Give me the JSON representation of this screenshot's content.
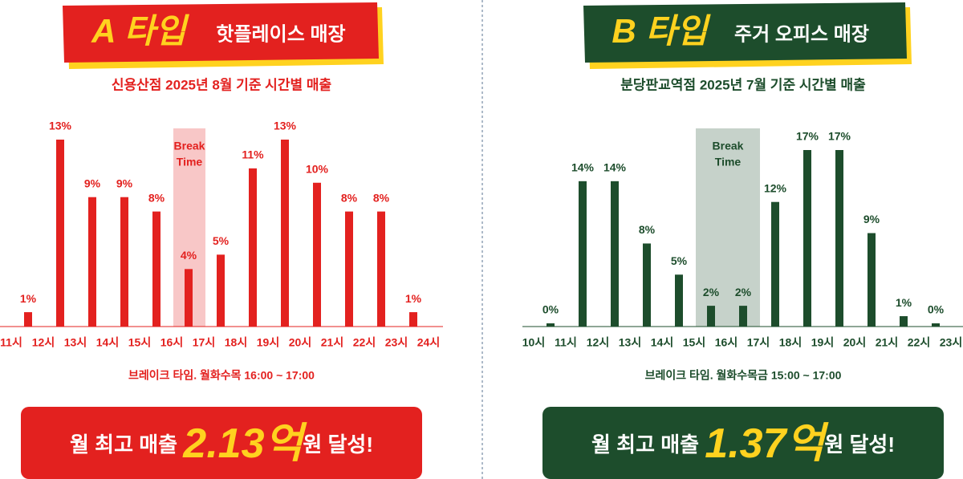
{
  "chart_data": [
    {
      "type": "histogram",
      "badge": "A 타입",
      "title": "핫플레이스 매장",
      "subtitle": "신용산점 2025년 8월 기준 시간별 매출",
      "bins": [
        11,
        12,
        13,
        14,
        15,
        16,
        17,
        18,
        19,
        20,
        21,
        22,
        23,
        24
      ],
      "values": [
        1,
        13,
        9,
        9,
        8,
        4,
        5,
        11,
        13,
        10,
        8,
        8,
        1
      ],
      "value_labels": [
        "1%",
        "13%",
        "9%",
        "9%",
        "8%",
        "4%",
        "5%",
        "11%",
        "13%",
        "10%",
        "8%",
        "8%",
        "1%"
      ],
      "xticks": [
        {
          "value": 11,
          "label": "11시"
        },
        {
          "value": 12,
          "label": "12시"
        },
        {
          "value": 13,
          "label": "13시"
        },
        {
          "value": 14,
          "label": "14시"
        },
        {
          "value": 15,
          "label": "15시"
        },
        {
          "value": 16,
          "label": "16시"
        },
        {
          "value": 17,
          "label": "17시"
        },
        {
          "value": 18,
          "label": "18시"
        },
        {
          "value": 19,
          "label": "19시"
        },
        {
          "value": 20,
          "label": "20시"
        },
        {
          "value": 21,
          "label": "21시"
        },
        {
          "value": 22,
          "label": "22시"
        },
        {
          "value": 23,
          "label": "23시"
        },
        {
          "value": 24,
          "label": "24시"
        }
      ],
      "ylim": [
        0,
        13
      ],
      "color": "#e3211f",
      "break_time": {
        "range": [
          16,
          17
        ],
        "label": [
          "Break",
          "Time"
        ]
      },
      "note": "브레이크 타임.  월화수목 16:00 ~ 17:00",
      "summary": [
        "월 최고 매출 ",
        "2.13억",
        "원 달성!"
      ]
    },
    {
      "type": "histogram",
      "badge": "B 타입",
      "title": "주거 오피스 매장",
      "subtitle": "분당판교역점 2025년 7월 기준 시간별 매출",
      "bins": [
        10,
        11,
        12,
        13,
        14,
        15,
        16,
        17,
        18,
        19,
        20,
        21,
        22,
        23
      ],
      "values": [
        0,
        14,
        14,
        8,
        5,
        2,
        2,
        12,
        17,
        17,
        9,
        1,
        0
      ],
      "value_labels": [
        "0%",
        "14%",
        "14%",
        "8%",
        "5%",
        "2%",
        "2%",
        "12%",
        "17%",
        "17%",
        "9%",
        "1%",
        "0%"
      ],
      "xticks": [
        {
          "value": 10,
          "label": "10시"
        },
        {
          "value": 11,
          "label": "11시"
        },
        {
          "value": 12,
          "label": "12시"
        },
        {
          "value": 13,
          "label": "13시"
        },
        {
          "value": 14,
          "label": "14시"
        },
        {
          "value": 15,
          "label": "15시"
        },
        {
          "value": 16,
          "label": "16시"
        },
        {
          "value": 17,
          "label": "17시"
        },
        {
          "value": 18,
          "label": "18시"
        },
        {
          "value": 19,
          "label": "19시"
        },
        {
          "value": 20,
          "label": "20시"
        },
        {
          "value": 21,
          "label": "21시"
        },
        {
          "value": 22,
          "label": "22시"
        },
        {
          "value": 23,
          "label": "23시"
        }
      ],
      "ylim": [
        0,
        17
      ],
      "color": "#1d4d2c",
      "break_time": {
        "range": [
          15,
          17
        ],
        "label": [
          "Break",
          "Time"
        ]
      },
      "note": "브레이크 타임.  월화수목금 15:00 ~ 17:00",
      "summary": [
        "월 최고 매출 ",
        "1.37억",
        "원 달성!"
      ]
    }
  ]
}
